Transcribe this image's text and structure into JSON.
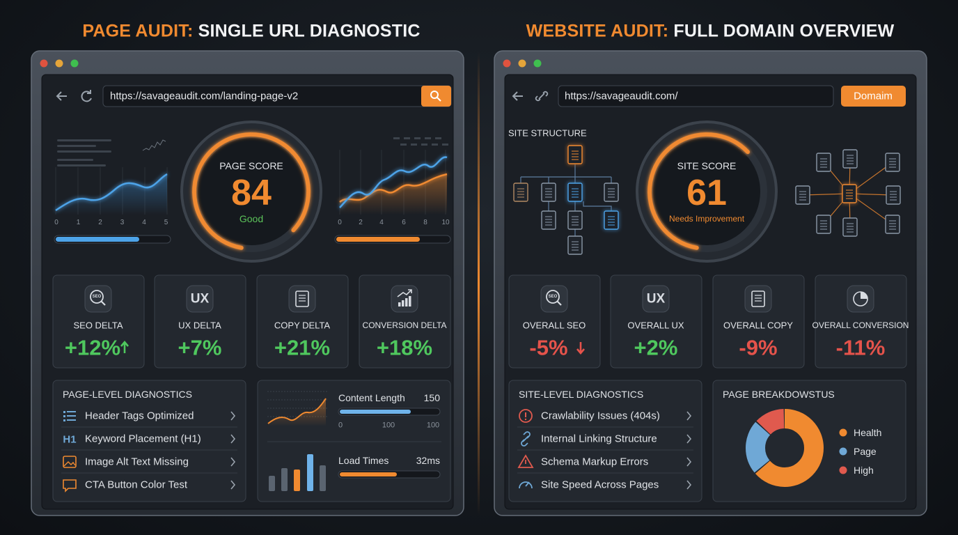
{
  "left": {
    "heading_accent": "PAGE AUDIT:",
    "heading_rest": "SINGLE URL DIAGNOSTIC",
    "url": "https://savageaudit.com/landing-page-v2",
    "score_label": "PAGE SCORE",
    "score": "84",
    "score_status": "Good",
    "status_color": "#5cc35a",
    "chart1_axis": [
      "0",
      "1",
      "2",
      "3",
      "4",
      "5"
    ],
    "chart2_axis": [
      "0",
      "2",
      "4",
      "6",
      "8",
      "10"
    ],
    "metrics": [
      {
        "badge": "SEO",
        "label": "SEO DELTA",
        "value": "+12%",
        "color": "#4fc85e",
        "trend": "up"
      },
      {
        "badge": "UX",
        "label": "UX DELTA",
        "value": "+7%",
        "color": "#4fc85e"
      },
      {
        "label": "COPY DELTA",
        "value": "+21%",
        "color": "#4fc85e"
      },
      {
        "label": "CONVERSION DELTA",
        "value": "+18%",
        "color": "#4fc85e"
      }
    ],
    "diagnostics_title": "PAGE-LEVEL DIAGNOSTICS",
    "diagnostics": [
      {
        "label": "Header Tags Optimized"
      },
      {
        "badge": "H1",
        "label": "Keyword Placement (H1)"
      },
      {
        "label": "Image Alt Text Missing"
      },
      {
        "label": "CTA Button Color Test"
      }
    ],
    "content_length": {
      "label": "Content Length",
      "value": "150",
      "ticks": [
        "0",
        "100",
        "100"
      ]
    },
    "load_times": {
      "label": "Load Times",
      "value": "32ms"
    }
  },
  "right": {
    "heading_accent": "WEBSITE AUDIT:",
    "heading_rest": "FULL DOMAIN OVERVIEW",
    "url": "https://savageaudit.com/",
    "button": "Domaim",
    "structure_title": "SITE STRUCTURE",
    "score_label": "SITE SCORE",
    "score": "61",
    "score_status": "Needs Improvement",
    "status_color": "#f08a30",
    "metrics": [
      {
        "badge": "SEO",
        "label": "OVERALL SEO",
        "value": "-5%",
        "color": "#e5534b",
        "trend": "down"
      },
      {
        "badge": "UX",
        "label": "OVERALL UX",
        "value": "+2%",
        "color": "#4fc85e"
      },
      {
        "label": "OVERALL COPY",
        "value": "-9%",
        "color": "#e5534b"
      },
      {
        "label": "OVERALL CONVERSION",
        "value": "-11%",
        "color": "#e5534b"
      }
    ],
    "diagnostics_title": "SITE-LEVEL DIAGNOSTICS",
    "diagnostics": [
      {
        "label": "Crawlability Issues (404s)"
      },
      {
        "label": "Internal Linking Structure"
      },
      {
        "label": "Schema Markup Errors"
      },
      {
        "label": "Site Speed Across Pages"
      }
    ],
    "breakdown_title": "PAGE BREAKDOWSTUS",
    "legend": [
      {
        "name": "Health",
        "color": "#f08a30"
      },
      {
        "name": "Page",
        "color": "#6fa8d6"
      },
      {
        "name": "High",
        "color": "#e05a4e"
      }
    ]
  }
}
